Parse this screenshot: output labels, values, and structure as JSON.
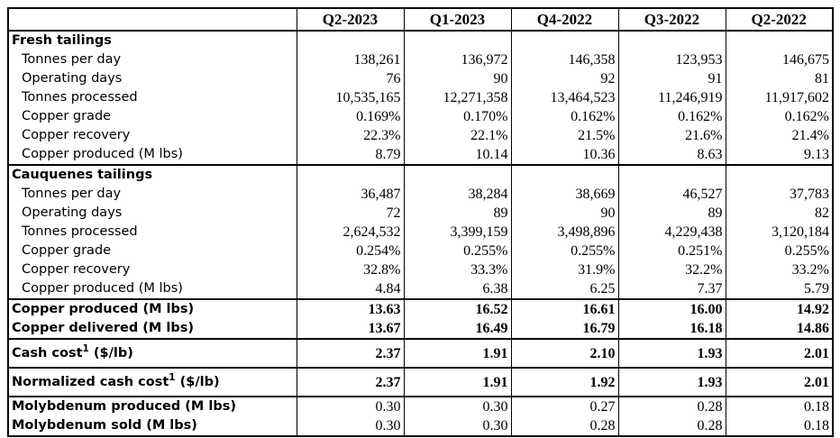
{
  "colors": {
    "text": "#000000",
    "border": "#000000",
    "background": "#ffffff"
  },
  "table": {
    "columns": [
      "Q2-2023",
      "Q1-2023",
      "Q4-2022",
      "Q3-2022",
      "Q2-2022"
    ],
    "rows": [
      {
        "type": "section",
        "label": "Fresh tailings",
        "values": [
          "",
          "",
          "",
          "",
          ""
        ]
      },
      {
        "type": "item",
        "label": "Tonnes per day",
        "values": [
          "138,261",
          "136,972",
          "146,358",
          "123,953",
          "146,675"
        ]
      },
      {
        "type": "item",
        "label": "Operating days",
        "values": [
          "76",
          "90",
          "92",
          "91",
          "81"
        ]
      },
      {
        "type": "item",
        "label": "Tonnes processed",
        "values": [
          "10,535,165",
          "12,271,358",
          "13,464,523",
          "11,246,919",
          "11,917,602"
        ]
      },
      {
        "type": "item",
        "label": "Copper grade",
        "values": [
          "0.169%",
          "0.170%",
          "0.162%",
          "0.162%",
          "0.162%"
        ]
      },
      {
        "type": "item",
        "label": "Copper recovery",
        "values": [
          "22.3%",
          "22.1%",
          "21.5%",
          "21.6%",
          "21.4%"
        ]
      },
      {
        "type": "item",
        "label": "Copper produced (M lbs)",
        "values": [
          "8.79",
          "10.14",
          "10.36",
          "8.63",
          "9.13"
        ]
      },
      {
        "type": "section",
        "section_start": true,
        "label": "Cauquenes tailings",
        "values": [
          "",
          "",
          "",
          "",
          ""
        ]
      },
      {
        "type": "item",
        "label": "Tonnes per day",
        "values": [
          "36,487",
          "38,284",
          "38,669",
          "46,527",
          "37,783"
        ]
      },
      {
        "type": "item",
        "label": "Operating days",
        "values": [
          "72",
          "89",
          "90",
          "89",
          "82"
        ]
      },
      {
        "type": "item",
        "label": "Tonnes processed",
        "values": [
          "2,624,532",
          "3,399,159",
          "3,498,896",
          "4,229,438",
          "3,120,184"
        ]
      },
      {
        "type": "item",
        "label": "Copper grade",
        "values": [
          "0.254%",
          "0.255%",
          "0.255%",
          "0.251%",
          "0.255%"
        ]
      },
      {
        "type": "item",
        "label": "Copper recovery",
        "values": [
          "32.8%",
          "33.3%",
          "31.9%",
          "32.2%",
          "33.2%"
        ]
      },
      {
        "type": "item",
        "label": "Copper produced (M lbs)",
        "values": [
          "4.84",
          "6.38",
          "6.25",
          "7.37",
          "5.79"
        ]
      },
      {
        "type": "summary",
        "section_start": true,
        "label": "Copper produced (M lbs)",
        "values": [
          "13.63",
          "16.52",
          "16.61",
          "16.00",
          "14.92"
        ]
      },
      {
        "type": "summary",
        "label": "Copper delivered (M lbs)",
        "values": [
          "13.67",
          "16.49",
          "16.79",
          "16.18",
          "14.86"
        ]
      },
      {
        "type": "summary-tall",
        "section_start": true,
        "label": "Cash cost",
        "sup": "1",
        "label_suffix": " ($/lb)",
        "values": [
          "2.37",
          "1.91",
          "2.10",
          "1.93",
          "2.01"
        ]
      },
      {
        "type": "summary-tall",
        "section_start": true,
        "label": "Normalized cash cost",
        "sup": "1",
        "label_suffix": " ($/lb)",
        "values": [
          "2.37",
          "1.91",
          "1.92",
          "1.93",
          "2.01"
        ]
      },
      {
        "type": "moly",
        "section_start": true,
        "label": "Molybdenum produced (M lbs)",
        "values": [
          "0.30",
          "0.30",
          "0.27",
          "0.28",
          "0.18"
        ]
      },
      {
        "type": "moly",
        "label": "Molybdenum sold (M lbs)",
        "values": [
          "0.30",
          "0.30",
          "0.28",
          "0.28",
          "0.18"
        ]
      }
    ]
  }
}
